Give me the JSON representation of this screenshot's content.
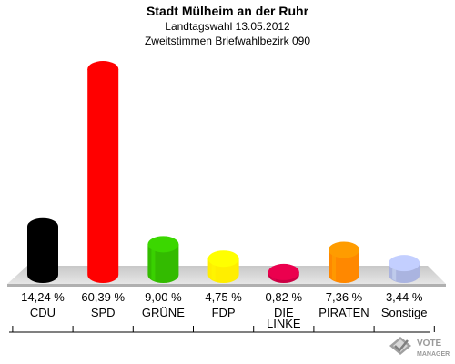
{
  "chart_data": {
    "type": "bar",
    "title": "Stadt Mülheim an der Ruhr",
    "subtitle_1": "Landtagswahl 13.05.2012",
    "subtitle_2": "Zweitstimmen Briefwahlbezirk 090",
    "categories": [
      "CDU",
      "SPD",
      "GRÜNE",
      "FDP",
      "DIE LINKE",
      "PIRATEN",
      "Sonstige"
    ],
    "values": [
      14.24,
      60.39,
      9.0,
      4.75,
      0.82,
      7.36,
      3.44
    ],
    "value_labels": [
      "14,24 %",
      "60,39 %",
      "9,00 %",
      "4,75 %",
      "0,82 %",
      "7,36 %",
      "3,44 %"
    ],
    "colors": [
      "#000000",
      "#ff0000",
      "#33bb00",
      "#ffee00",
      "#cc0044",
      "#ff8800",
      "#aab4e0"
    ],
    "ylim": [
      0,
      62
    ]
  },
  "watermark": {
    "line1": "VOTE",
    "line2": "MANAGER",
    "icon": "vote-manager-logo-icon"
  }
}
